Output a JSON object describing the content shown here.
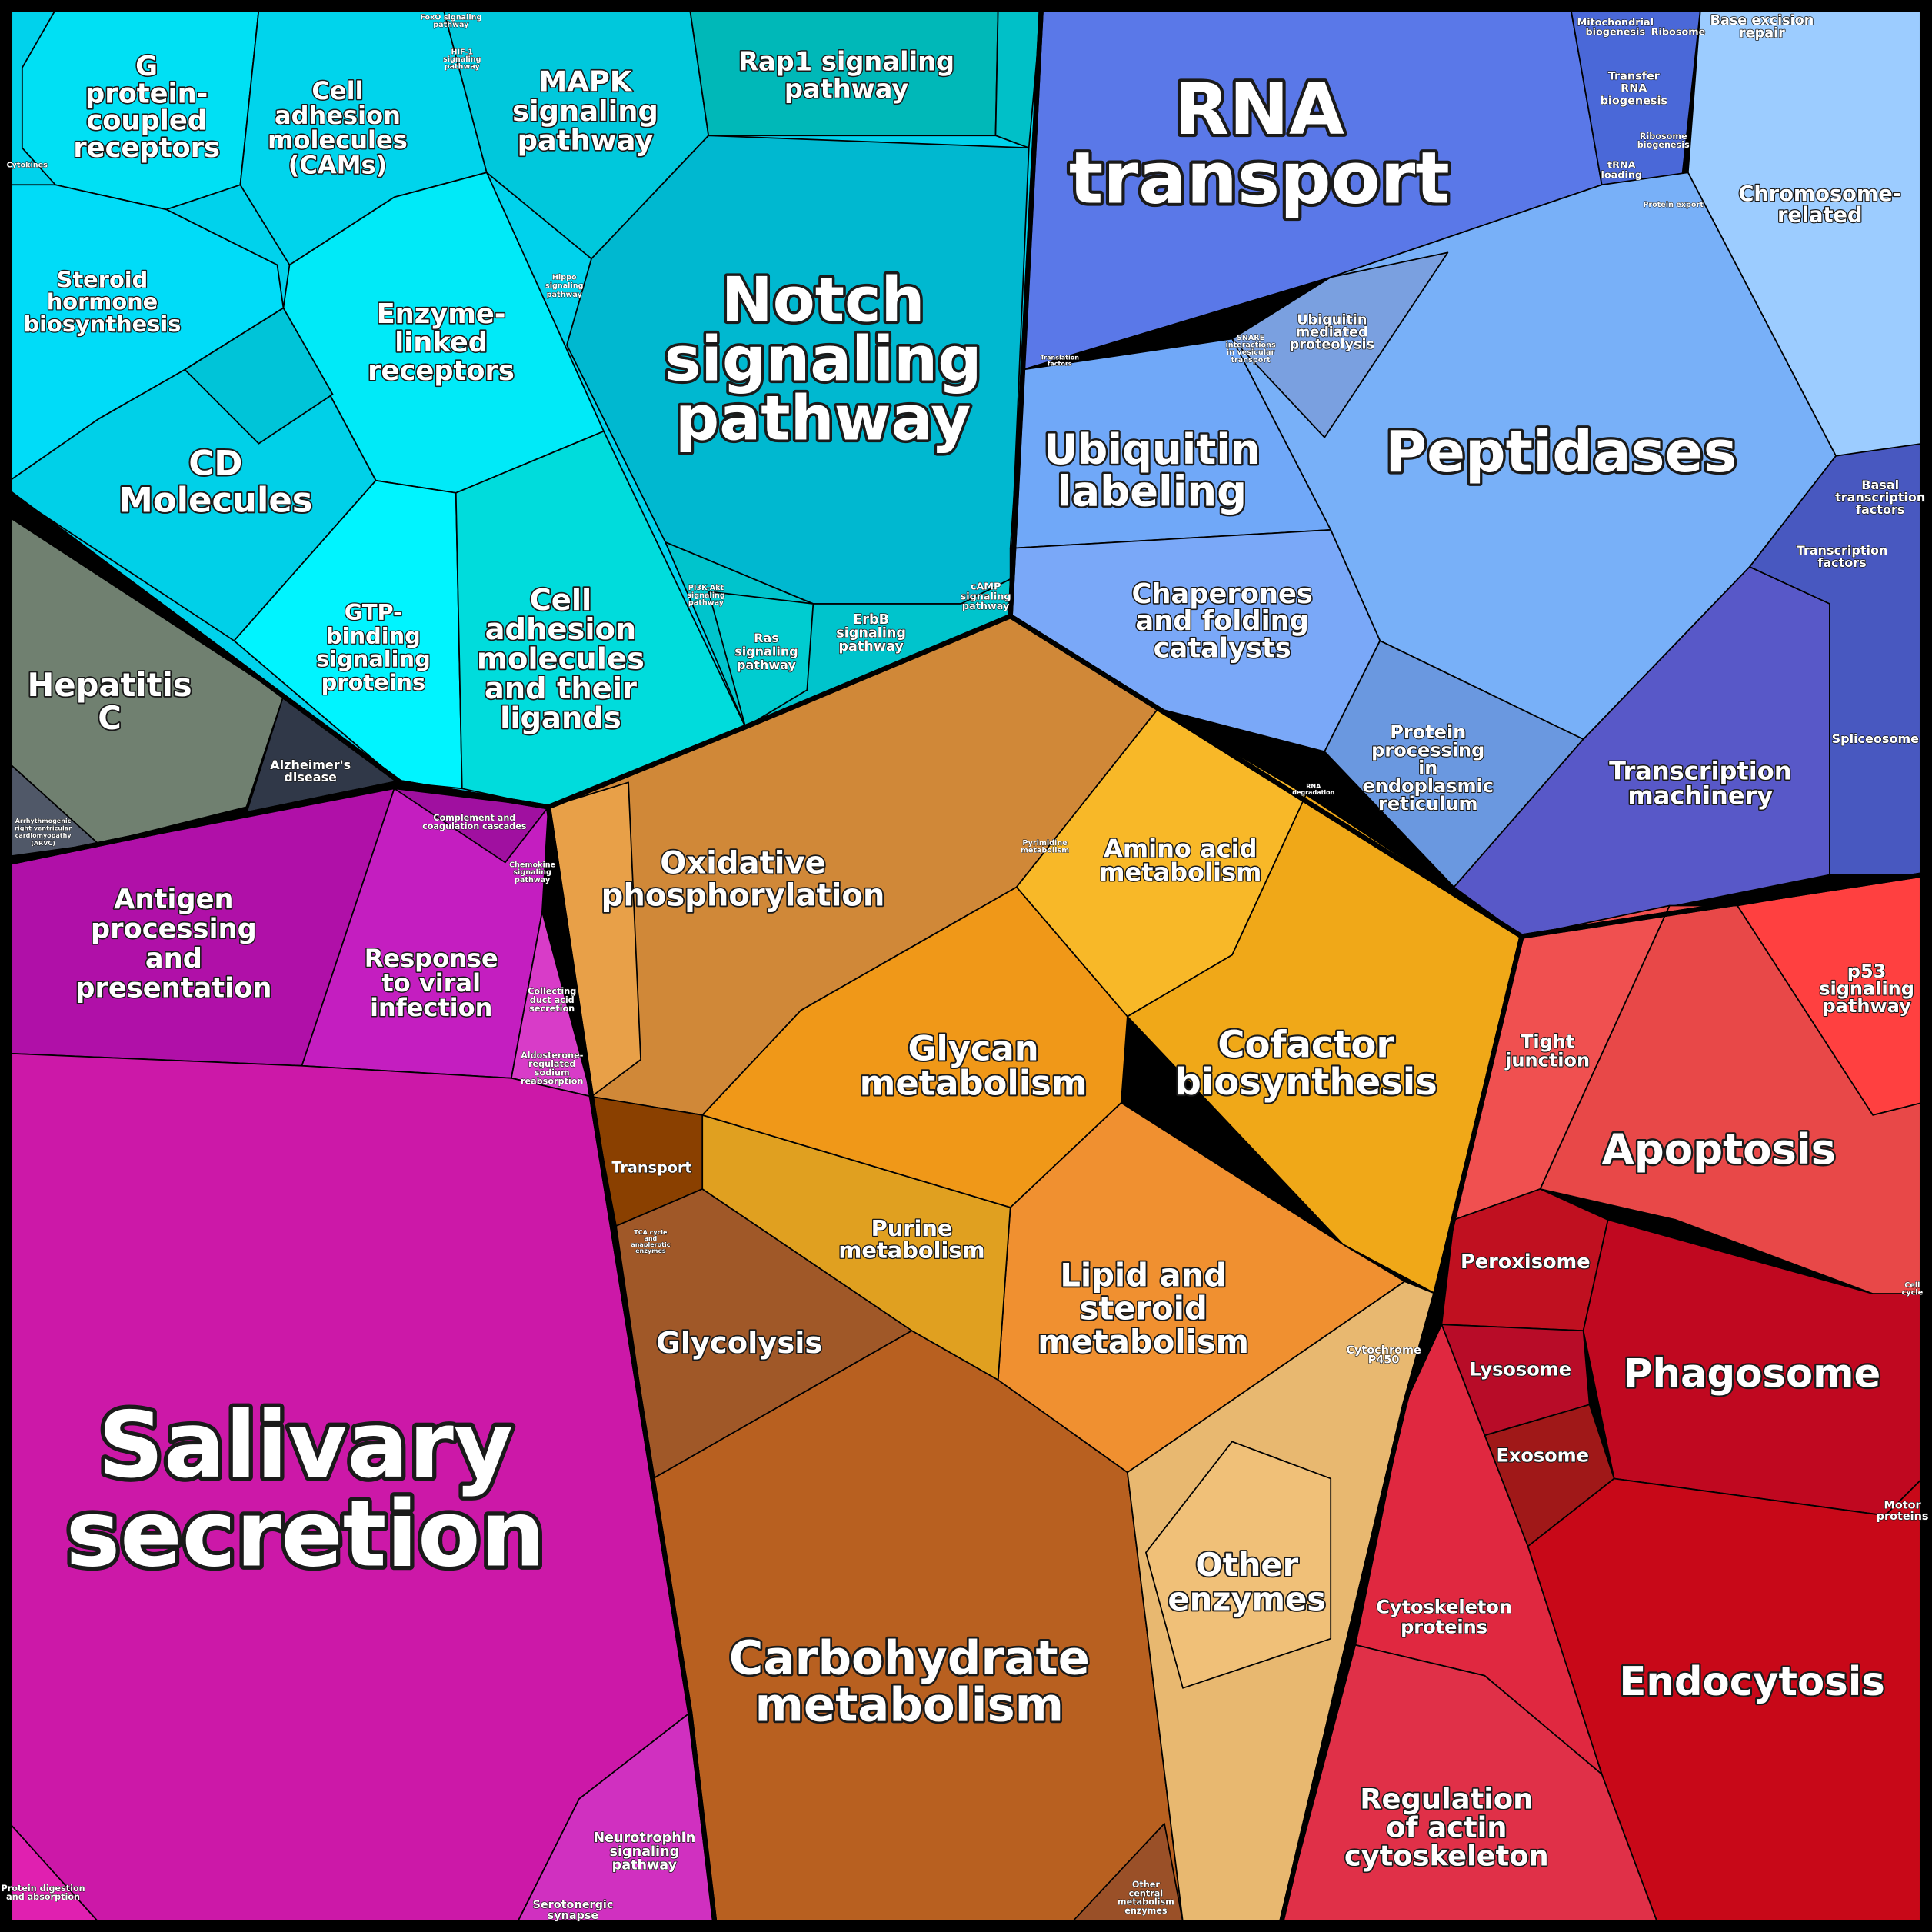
{
  "labels": [
    [
      "RNA",
      "transport"
    ],
    [
      "Notch",
      "signaling",
      "pathway"
    ],
    [
      "Peptidases"
    ],
    [
      "Salivary",
      "secretion"
    ],
    [
      "Carbohydrate",
      "metabolism"
    ],
    [
      "Cofactor",
      "biosynthesis"
    ],
    [
      "Glycan",
      "metabolism"
    ],
    [
      "Lipid and",
      "steroid",
      "metabolism"
    ],
    [
      "Oxidative",
      "phosphorylation"
    ],
    [
      "Amino acid",
      "metabolism"
    ],
    [
      "Purine",
      "metabolism"
    ],
    [
      "Glycolysis"
    ],
    [
      "Other",
      "enzymes"
    ],
    [
      "Transport"
    ],
    [
      "Apoptosis"
    ],
    [
      "Phagosome"
    ],
    [
      "Endocytosis"
    ],
    [
      "Regulation",
      "of actin",
      "cytoskeleton"
    ],
    [
      "Cytoskeleton",
      "proteins"
    ],
    [
      "Peroxisome"
    ],
    [
      "Lysosome"
    ],
    [
      "Exosome"
    ],
    [
      "Tight",
      "junction"
    ],
    [
      "p53",
      "signaling",
      "pathway"
    ],
    [
      "Ubiquitin",
      "labeling"
    ],
    [
      "Chaperones",
      "and folding",
      "catalysts"
    ],
    [
      "Protein",
      "processing",
      "in",
      "endoplasmic",
      "reticulum"
    ],
    [
      "Transcription",
      "machinery"
    ],
    [
      "Chromosome-",
      "related"
    ],
    [
      "Spliceosome"
    ],
    [
      "Transcription",
      "factors"
    ],
    [
      "Basal",
      "transcription",
      "factors"
    ],
    [
      "Base excision",
      "repair"
    ],
    [
      "Ubiquitin",
      "mediated",
      "proteolysis"
    ],
    [
      "Mitochondrial",
      "biogenesis"
    ],
    [
      "Ribosome"
    ],
    [
      "Transfer",
      "RNA",
      "biogenesis"
    ],
    [
      "Ribosome",
      "biogenesis"
    ],
    [
      "tRNA",
      "loading"
    ],
    [
      "G",
      "protein-",
      "coupled",
      "receptors"
    ],
    [
      "Cell",
      "adhesion",
      "molecules",
      "(CAMs)"
    ],
    [
      "MAPK",
      "signaling",
      "pathway"
    ],
    [
      "Rap1 signaling",
      "pathway"
    ],
    [
      "Steroid",
      "hormone",
      "biosynthesis"
    ],
    [
      "Enzyme-",
      "linked",
      "receptors"
    ],
    [
      "CD",
      "Molecules"
    ],
    [
      "GTP-",
      "binding",
      "signaling",
      "proteins"
    ],
    [
      "Cell",
      "adhesion",
      "molecules",
      "and their",
      "ligands"
    ],
    [
      "Ras",
      "signaling",
      "pathway"
    ],
    [
      "ErbB",
      "signaling",
      "pathway"
    ],
    [
      "cAMP",
      "signaling",
      "pathway"
    ],
    [
      "Hepatitis",
      "C"
    ],
    [
      "Alzheimer's",
      "disease"
    ],
    [
      "Antigen",
      "processing",
      "and",
      "presentation"
    ],
    [
      "Response",
      "to viral",
      "infection"
    ],
    [
      "Complement and",
      "coagulation cascades"
    ],
    [
      "Aldosterone-",
      "regulated",
      "sodium",
      "reabsorption"
    ],
    [
      "Neurotrophin",
      "signaling",
      "pathway"
    ],
    [
      "Serotonergic",
      "synapse"
    ],
    [
      "Protein digestion",
      "and absorption"
    ],
    [
      "Cytochrome",
      "P450"
    ],
    [
      "Other",
      "central",
      "metabolism",
      "enzymes"
    ],
    [
      "Motor",
      "proteins"
    ],
    [
      "Arrhythmogenic",
      "right ventricular",
      "cardiomyopathy",
      "(ARVC)"
    ],
    [
      "Cell",
      "cycle"
    ],
    [
      "SNARE",
      "interactions",
      "in vesicular",
      "transport"
    ],
    [
      "Protein export"
    ],
    [
      "Chemokine",
      "signaling",
      "pathway"
    ],
    [
      "Collecting",
      "duct acid",
      "secretion"
    ],
    [
      "Hippo",
      "signaling",
      "pathway"
    ],
    [
      "FoxO signaling",
      "pathway"
    ],
    [
      "HIF-1",
      "signaling",
      "pathway"
    ],
    [
      "PI3K-Akt",
      "signaling",
      "pathway"
    ],
    [
      "Pyrimidine",
      "metabolism"
    ],
    [
      "Cytokines"
    ],
    [
      "Translation",
      "factors"
    ],
    [
      "RNA",
      "degradation"
    ],
    [
      "TCA cycle",
      "and",
      "anaplerotic",
      "enzymes"
    ]
  ]
}
